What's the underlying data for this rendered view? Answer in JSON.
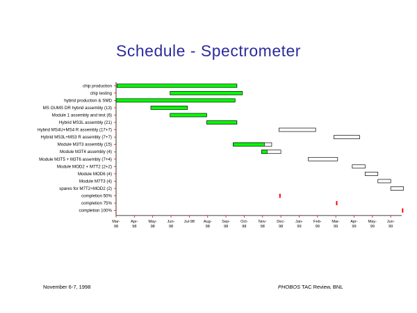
{
  "title": "Schedule - Spectrometer",
  "footer": {
    "left": "November 6-7, 1998",
    "right_italic": "PHOBOS",
    "right_rest": " TAC Review, BNL"
  },
  "colors": {
    "bar_fill": "#00ff00",
    "planned_fill": "#ffffff",
    "milestone": "#ff0000",
    "axis_tick": "#ff0000",
    "title": "#2b2b9e"
  },
  "chart_data": {
    "type": "gantt",
    "title": "Schedule - Spectrometer",
    "time_axis": {
      "ticks": [
        [
          "Mar-",
          "98"
        ],
        [
          "Apr-",
          "98"
        ],
        [
          "May-",
          "98"
        ],
        [
          "Jun-",
          "98"
        ],
        [
          "Jul-98",
          ""
        ],
        [
          "Aug-",
          "98"
        ],
        [
          "Sep-",
          "98"
        ],
        [
          "Oct-",
          "98"
        ],
        [
          "Nov-",
          "98"
        ],
        [
          "Dec-",
          "98"
        ],
        [
          "Jan-",
          "99"
        ],
        [
          "Feb-",
          "99"
        ],
        [
          "Mar-",
          "99"
        ],
        [
          "Apr-",
          "99"
        ],
        [
          "May-",
          "99"
        ],
        [
          "Jun-",
          "99"
        ]
      ],
      "range": [
        0,
        15.6
      ]
    },
    "tasks": [
      {
        "label": "chip production",
        "start": 0.05,
        "end": 6.6,
        "status": "done"
      },
      {
        "label": "chip testing",
        "start": 2.95,
        "end": 6.9,
        "status": "done"
      },
      {
        "label": "hybrid production & SMD",
        "start": 0.0,
        "end": 6.5,
        "status": "done"
      },
      {
        "label": "MS OUMS DR hybrid assembly (13)",
        "start": 1.9,
        "end": 3.9,
        "status": "done"
      },
      {
        "label": "Module 1 assembly and test (6)",
        "start": 2.95,
        "end": 4.95,
        "status": "done"
      },
      {
        "label": "Hybrid MS3L assembly (21)",
        "start": 4.95,
        "end": 6.6,
        "status": "done"
      },
      {
        "label": "Hybrid MS4U+MS4 R assembly (17+7)",
        "start": 8.9,
        "end": 10.9,
        "status": "planned"
      },
      {
        "label": "Hybrid MS3L+MS3 R assembly (7+7)",
        "start": 11.9,
        "end": 13.3,
        "status": "planned"
      },
      {
        "label": "Module M3T3 assembly (15)",
        "start": 6.4,
        "end": 8.1,
        "status": "done",
        "planned_end": 8.5
      },
      {
        "label": "Module M3T4 assembly (4)",
        "start": 7.95,
        "end": 8.25,
        "status": "done",
        "planned_end": 9.0
      },
      {
        "label": "Module M3T5 + M3T6 assembly (7+4)",
        "start": 10.5,
        "end": 12.1,
        "status": "planned"
      },
      {
        "label": "Module MOD2 + M7T2 (2+2)",
        "start": 12.9,
        "end": 13.6,
        "status": "planned"
      },
      {
        "label": "Module MOD6 (4)",
        "start": 13.6,
        "end": 14.3,
        "status": "planned"
      },
      {
        "label": "Module M7T3 (4)",
        "start": 14.3,
        "end": 15.0,
        "status": "planned"
      },
      {
        "label": "spares for M7T2+MOD2 (2)",
        "start": 15.0,
        "end": 15.7,
        "status": "planned"
      },
      {
        "label": "completion 50%",
        "milestone": 8.95
      },
      {
        "label": "completion 75%",
        "milestone": 12.05
      },
      {
        "label": "completion 100%",
        "milestone": 15.65
      }
    ]
  }
}
